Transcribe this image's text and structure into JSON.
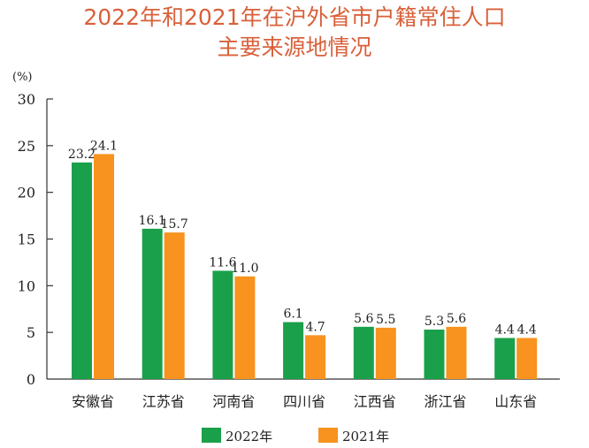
{
  "chart_data": {
    "type": "bar",
    "title_line1": "2022年和2021年在沪外省市户籍常住人口",
    "title_line2": "主要来源地情况",
    "ylabel": "(%)",
    "ylim": [
      0,
      30
    ],
    "yticks": [
      0,
      5,
      10,
      15,
      20,
      25,
      30
    ],
    "categories": [
      "安徽省",
      "江苏省",
      "河南省",
      "四川省",
      "江西省",
      "浙江省",
      "山东省"
    ],
    "series": [
      {
        "name": "2022年",
        "color": "#1aa04a",
        "values": [
          23.2,
          16.1,
          11.6,
          6.1,
          5.6,
          5.3,
          4.4
        ],
        "labels": [
          "23.2",
          "16.1",
          "11.6",
          "6.1",
          "5.6",
          "5.3",
          "4.4"
        ]
      },
      {
        "name": "2021年",
        "color": "#f7931e",
        "values": [
          24.1,
          15.7,
          11.0,
          4.7,
          5.5,
          5.6,
          4.4
        ],
        "labels": [
          "24.1",
          "15.7",
          "11.0",
          "4.7",
          "5.5",
          "5.6",
          "4.4"
        ]
      }
    ],
    "grid": false,
    "legend": "bottom"
  }
}
